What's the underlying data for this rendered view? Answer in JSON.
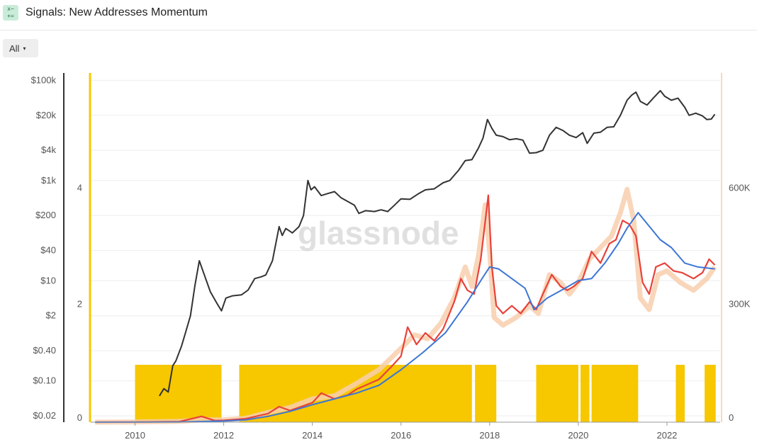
{
  "header": {
    "title": "Signals: New Addresses Momentum",
    "icon": "metric-icon"
  },
  "controls": {
    "range_label": "All",
    "range_caret": "▾"
  },
  "watermark": "glassnode",
  "colors": {
    "price": "#333333",
    "short_ma": "#e8423a",
    "long_ma": "#3d76d6",
    "daily": "#f8cfae",
    "signal": "#f7c700",
    "left_axis": "#f7c700",
    "right_axis": "#f8d8bc",
    "grid": "#eeeeee"
  },
  "chart_data": {
    "type": "line",
    "x_ticks": [
      "2010",
      "2012",
      "2014",
      "2016",
      "2018",
      "2020",
      "2022"
    ],
    "x_range": [
      2009.0,
      2023.2
    ],
    "price_axis": {
      "scale": "log",
      "range": [
        0.015,
        140000
      ],
      "ticks": [
        {
          "value": 0.02,
          "label": "$0.02"
        },
        {
          "value": 0.1,
          "label": "$0.10"
        },
        {
          "value": 0.4,
          "label": "$0.40"
        },
        {
          "value": 2,
          "label": "$2"
        },
        {
          "value": 10,
          "label": "$10"
        },
        {
          "value": 40,
          "label": "$40"
        },
        {
          "value": 200,
          "label": "$200"
        },
        {
          "value": 1000,
          "label": "$1k"
        },
        {
          "value": 4000,
          "label": "$4k"
        },
        {
          "value": 20000,
          "label": "$20k"
        },
        {
          "value": 100000,
          "label": "$100k"
        }
      ]
    },
    "signal_axis": {
      "range": [
        0,
        6
      ],
      "ticks": [
        {
          "value": 0,
          "label": "0"
        },
        {
          "value": 2,
          "label": "2"
        },
        {
          "value": 4,
          "label": "4"
        }
      ]
    },
    "addresses_axis": {
      "range": [
        0,
        900000
      ],
      "ticks": [
        {
          "value": 0,
          "label": "0"
        },
        {
          "value": 300000,
          "label": "300K"
        },
        {
          "value": 600000,
          "label": "600K"
        }
      ]
    },
    "signal_periods": [
      [
        2010.0,
        2011.95
      ],
      [
        2012.35,
        2017.6
      ],
      [
        2017.67,
        2018.15
      ],
      [
        2019.05,
        2020.0
      ],
      [
        2020.05,
        2020.25
      ],
      [
        2020.3,
        2021.35
      ],
      [
        2022.2,
        2022.4
      ],
      [
        2022.85,
        2023.1
      ]
    ],
    "series": [
      {
        "key": "price",
        "points": [
          [
            2010.55,
            0.05
          ],
          [
            2010.65,
            0.07
          ],
          [
            2010.75,
            0.06
          ],
          [
            2010.85,
            0.2
          ],
          [
            2010.92,
            0.25
          ],
          [
            2011.05,
            0.5
          ],
          [
            2011.15,
            1.0
          ],
          [
            2011.25,
            2.0
          ],
          [
            2011.35,
            8
          ],
          [
            2011.45,
            25
          ],
          [
            2011.55,
            14
          ],
          [
            2011.7,
            6
          ],
          [
            2011.85,
            3.5
          ],
          [
            2011.95,
            2.5
          ],
          [
            2012.05,
            4.5
          ],
          [
            2012.2,
            5
          ],
          [
            2012.4,
            5.2
          ],
          [
            2012.55,
            6.5
          ],
          [
            2012.7,
            11
          ],
          [
            2012.85,
            12
          ],
          [
            2012.95,
            13
          ],
          [
            2013.1,
            25
          ],
          [
            2013.25,
            120
          ],
          [
            2013.32,
            80
          ],
          [
            2013.4,
            110
          ],
          [
            2013.55,
            90
          ],
          [
            2013.7,
            120
          ],
          [
            2013.8,
            200
          ],
          [
            2013.9,
            1000
          ],
          [
            2013.97,
            650
          ],
          [
            2014.05,
            750
          ],
          [
            2014.2,
            500
          ],
          [
            2014.35,
            550
          ],
          [
            2014.5,
            600
          ],
          [
            2014.65,
            450
          ],
          [
            2014.8,
            380
          ],
          [
            2014.95,
            320
          ],
          [
            2015.05,
            220
          ],
          [
            2015.2,
            250
          ],
          [
            2015.4,
            240
          ],
          [
            2015.55,
            260
          ],
          [
            2015.7,
            240
          ],
          [
            2015.85,
            320
          ],
          [
            2016.0,
            430
          ],
          [
            2016.2,
            420
          ],
          [
            2016.4,
            550
          ],
          [
            2016.55,
            650
          ],
          [
            2016.75,
            680
          ],
          [
            2016.95,
            900
          ],
          [
            2017.1,
            1000
          ],
          [
            2017.3,
            1600
          ],
          [
            2017.45,
            2500
          ],
          [
            2017.6,
            2600
          ],
          [
            2017.75,
            4500
          ],
          [
            2017.85,
            7000
          ],
          [
            2017.95,
            16500
          ],
          [
            2018.05,
            11000
          ],
          [
            2018.15,
            8000
          ],
          [
            2018.3,
            7500
          ],
          [
            2018.45,
            6500
          ],
          [
            2018.6,
            6800
          ],
          [
            2018.75,
            6400
          ],
          [
            2018.9,
            3500
          ],
          [
            2019.05,
            3600
          ],
          [
            2019.2,
            4000
          ],
          [
            2019.35,
            8000
          ],
          [
            2019.5,
            11500
          ],
          [
            2019.65,
            10000
          ],
          [
            2019.8,
            8000
          ],
          [
            2019.95,
            7200
          ],
          [
            2020.1,
            9000
          ],
          [
            2020.2,
            5500
          ],
          [
            2020.35,
            8800
          ],
          [
            2020.5,
            9200
          ],
          [
            2020.65,
            11500
          ],
          [
            2020.8,
            11800
          ],
          [
            2020.95,
            20000
          ],
          [
            2021.1,
            40000
          ],
          [
            2021.2,
            50000
          ],
          [
            2021.3,
            58000
          ],
          [
            2021.4,
            38000
          ],
          [
            2021.55,
            32000
          ],
          [
            2021.7,
            45000
          ],
          [
            2021.85,
            62000
          ],
          [
            2021.95,
            48000
          ],
          [
            2022.1,
            40000
          ],
          [
            2022.25,
            44000
          ],
          [
            2022.4,
            29000
          ],
          [
            2022.5,
            20000
          ],
          [
            2022.65,
            22000
          ],
          [
            2022.8,
            19500
          ],
          [
            2022.9,
            16500
          ],
          [
            2023.0,
            16800
          ],
          [
            2023.08,
            21000
          ]
        ]
      },
      {
        "key": "daily",
        "points": [
          [
            2009.1,
            0
          ],
          [
            2010.0,
            500
          ],
          [
            2011.0,
            2000
          ],
          [
            2011.5,
            6000
          ],
          [
            2012.0,
            6000
          ],
          [
            2012.5,
            10000
          ],
          [
            2013.0,
            25000
          ],
          [
            2013.5,
            38000
          ],
          [
            2014.0,
            60000
          ],
          [
            2014.5,
            68000
          ],
          [
            2015.0,
            100000
          ],
          [
            2015.5,
            135000
          ],
          [
            2016.0,
            190000
          ],
          [
            2016.3,
            225000
          ],
          [
            2016.6,
            215000
          ],
          [
            2016.9,
            255000
          ],
          [
            2017.2,
            320000
          ],
          [
            2017.45,
            400000
          ],
          [
            2017.6,
            350000
          ],
          [
            2017.75,
            430000
          ],
          [
            2017.9,
            560000
          ],
          [
            2018.0,
            440000
          ],
          [
            2018.1,
            270000
          ],
          [
            2018.3,
            250000
          ],
          [
            2018.6,
            270000
          ],
          [
            2018.9,
            300000
          ],
          [
            2019.1,
            280000
          ],
          [
            2019.35,
            380000
          ],
          [
            2019.6,
            360000
          ],
          [
            2019.8,
            330000
          ],
          [
            2020.0,
            360000
          ],
          [
            2020.25,
            420000
          ],
          [
            2020.5,
            450000
          ],
          [
            2020.75,
            480000
          ],
          [
            2020.95,
            540000
          ],
          [
            2021.1,
            600000
          ],
          [
            2021.25,
            520000
          ],
          [
            2021.4,
            320000
          ],
          [
            2021.6,
            290000
          ],
          [
            2021.8,
            380000
          ],
          [
            2022.0,
            390000
          ],
          [
            2022.3,
            360000
          ],
          [
            2022.6,
            340000
          ],
          [
            2022.9,
            370000
          ],
          [
            2023.08,
            400000
          ]
        ]
      },
      {
        "key": "short_ma",
        "points": [
          [
            2009.1,
            0
          ],
          [
            2010.0,
            400
          ],
          [
            2011.0,
            1500
          ],
          [
            2011.5,
            15000
          ],
          [
            2011.8,
            4000
          ],
          [
            2012.0,
            4500
          ],
          [
            2012.5,
            9000
          ],
          [
            2013.0,
            22000
          ],
          [
            2013.25,
            40000
          ],
          [
            2013.5,
            30000
          ],
          [
            2014.0,
            50000
          ],
          [
            2014.2,
            75000
          ],
          [
            2014.5,
            60000
          ],
          [
            2014.8,
            70000
          ],
          [
            2015.0,
            85000
          ],
          [
            2015.5,
            110000
          ],
          [
            2015.8,
            145000
          ],
          [
            2016.0,
            170000
          ],
          [
            2016.15,
            245000
          ],
          [
            2016.35,
            200000
          ],
          [
            2016.55,
            230000
          ],
          [
            2016.75,
            210000
          ],
          [
            2016.95,
            240000
          ],
          [
            2017.2,
            310000
          ],
          [
            2017.35,
            370000
          ],
          [
            2017.5,
            340000
          ],
          [
            2017.65,
            330000
          ],
          [
            2017.8,
            420000
          ],
          [
            2017.97,
            585000
          ],
          [
            2018.05,
            400000
          ],
          [
            2018.15,
            300000
          ],
          [
            2018.3,
            280000
          ],
          [
            2018.5,
            300000
          ],
          [
            2018.7,
            280000
          ],
          [
            2018.9,
            310000
          ],
          [
            2019.05,
            290000
          ],
          [
            2019.2,
            330000
          ],
          [
            2019.4,
            380000
          ],
          [
            2019.6,
            350000
          ],
          [
            2019.75,
            340000
          ],
          [
            2019.9,
            350000
          ],
          [
            2020.1,
            370000
          ],
          [
            2020.3,
            440000
          ],
          [
            2020.5,
            410000
          ],
          [
            2020.7,
            460000
          ],
          [
            2020.85,
            470000
          ],
          [
            2021.0,
            520000
          ],
          [
            2021.15,
            510000
          ],
          [
            2021.3,
            480000
          ],
          [
            2021.45,
            360000
          ],
          [
            2021.6,
            330000
          ],
          [
            2021.75,
            400000
          ],
          [
            2021.95,
            410000
          ],
          [
            2022.15,
            390000
          ],
          [
            2022.35,
            385000
          ],
          [
            2022.6,
            370000
          ],
          [
            2022.8,
            385000
          ],
          [
            2022.95,
            420000
          ],
          [
            2023.08,
            405000
          ]
        ]
      },
      {
        "key": "long_ma",
        "points": [
          [
            2009.1,
            0
          ],
          [
            2011.0,
            500
          ],
          [
            2012.0,
            3000
          ],
          [
            2012.5,
            6000
          ],
          [
            2013.0,
            15000
          ],
          [
            2013.5,
            28000
          ],
          [
            2014.0,
            45000
          ],
          [
            2014.5,
            60000
          ],
          [
            2015.0,
            75000
          ],
          [
            2015.5,
            95000
          ],
          [
            2016.0,
            135000
          ],
          [
            2016.5,
            180000
          ],
          [
            2017.0,
            230000
          ],
          [
            2017.5,
            310000
          ],
          [
            2017.8,
            365000
          ],
          [
            2018.0,
            400000
          ],
          [
            2018.2,
            395000
          ],
          [
            2018.5,
            370000
          ],
          [
            2018.8,
            345000
          ],
          [
            2019.0,
            290000
          ],
          [
            2019.3,
            320000
          ],
          [
            2019.7,
            345000
          ],
          [
            2020.0,
            365000
          ],
          [
            2020.3,
            370000
          ],
          [
            2020.6,
            410000
          ],
          [
            2020.9,
            460000
          ],
          [
            2021.1,
            500000
          ],
          [
            2021.35,
            540000
          ],
          [
            2021.6,
            505000
          ],
          [
            2021.85,
            470000
          ],
          [
            2022.1,
            450000
          ],
          [
            2022.4,
            410000
          ],
          [
            2022.7,
            400000
          ],
          [
            2023.08,
            395000
          ]
        ]
      }
    ]
  }
}
